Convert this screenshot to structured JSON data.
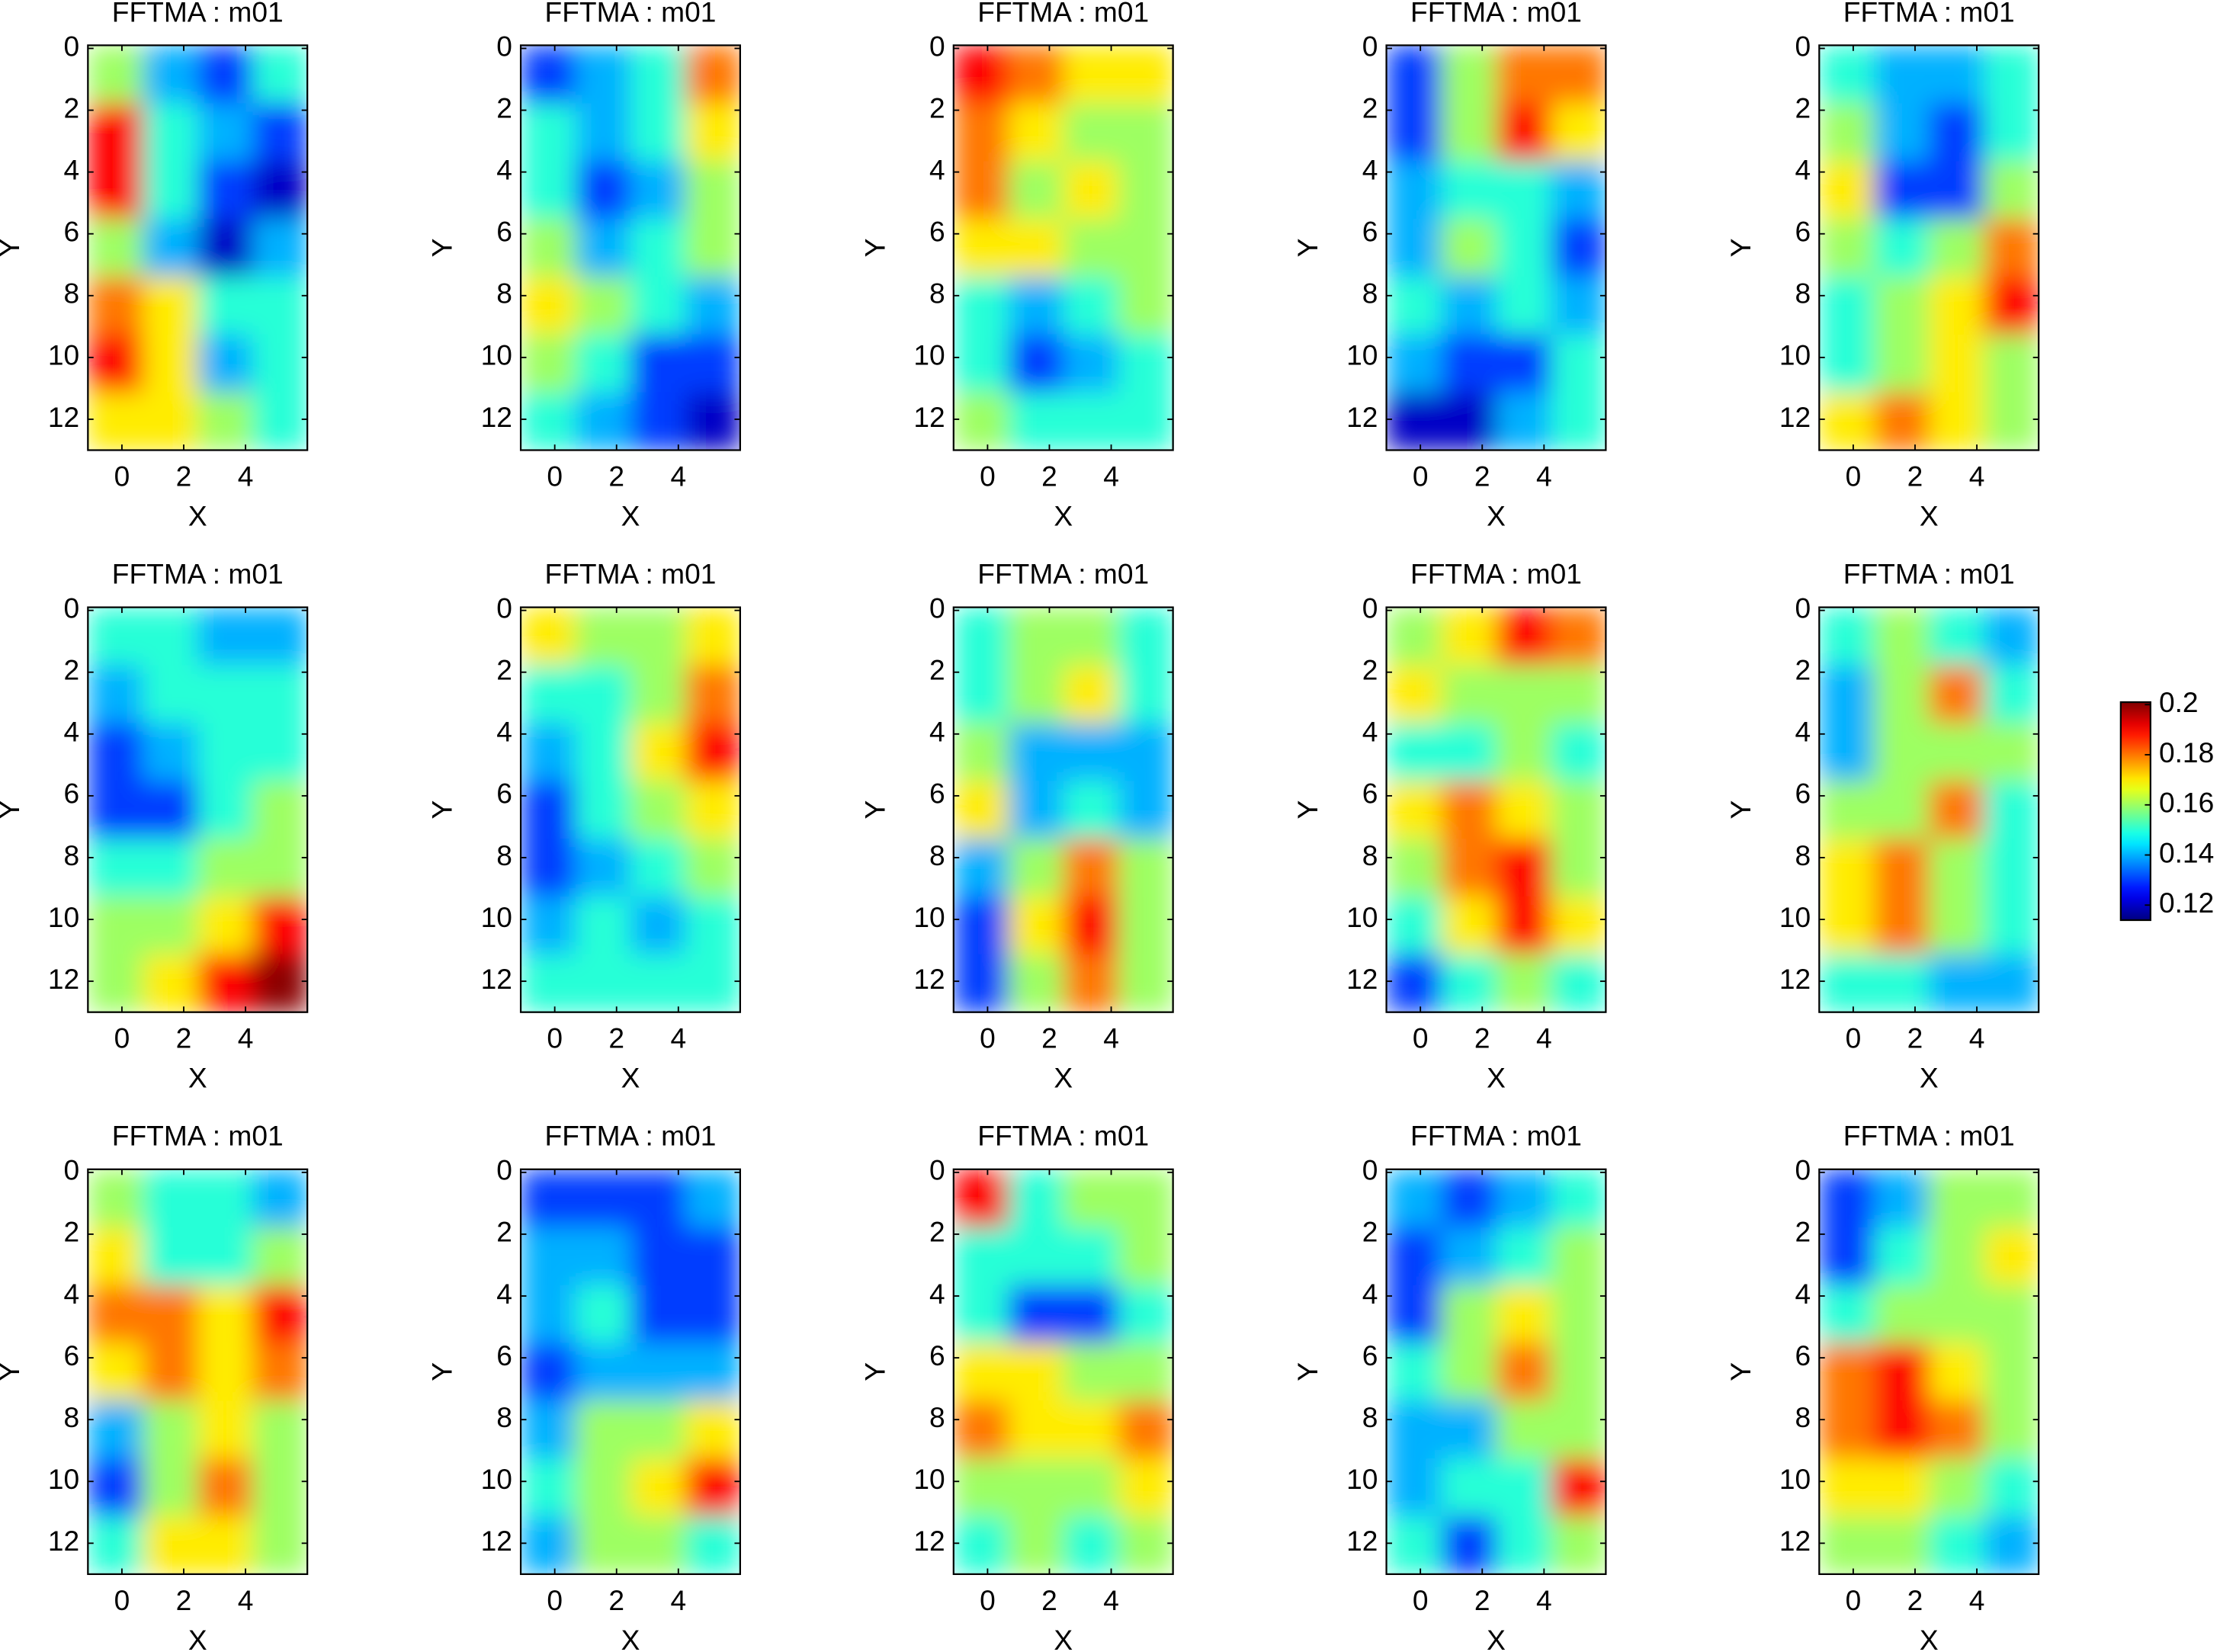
{
  "chart_data": [
    {
      "type": "heatmap",
      "title": "FFTMA : m01",
      "xlabel": "X",
      "ylabel": "Y",
      "x": [
        -0.21,
        1.56,
        3.34,
        5.11
      ],
      "y": [
        0.84,
        2.71,
        4.58,
        6.45,
        8.32,
        10.19,
        12.06
      ],
      "xlim": [
        -1.1,
        6
      ],
      "ylim": [
        -0.1,
        13
      ],
      "yreverse": true,
      "xticks": [
        0,
        2,
        4
      ],
      "yticks": [
        0,
        2,
        4,
        6,
        8,
        10,
        12
      ],
      "z": [
        [
          0.16,
          0.14,
          0.13,
          0.15
        ],
        [
          0.19,
          0.15,
          0.14,
          0.13
        ],
        [
          0.19,
          0.15,
          0.13,
          0.12
        ],
        [
          0.16,
          0.14,
          0.12,
          0.14
        ],
        [
          0.18,
          0.17,
          0.15,
          0.15
        ],
        [
          0.19,
          0.17,
          0.14,
          0.15
        ],
        [
          0.17,
          0.17,
          0.16,
          0.15
        ]
      ]
    },
    {
      "type": "heatmap",
      "title": "FFTMA : m01",
      "xlabel": "X",
      "ylabel": "Y",
      "x": [
        -0.21,
        1.56,
        3.34,
        5.11
      ],
      "y": [
        0.84,
        2.71,
        4.58,
        6.45,
        8.32,
        10.19,
        12.06
      ],
      "xlim": [
        -1.1,
        6
      ],
      "ylim": [
        -0.1,
        13
      ],
      "yreverse": true,
      "xticks": [
        0,
        2,
        4
      ],
      "yticks": [
        0,
        2,
        4,
        6,
        8,
        10,
        12
      ],
      "z": [
        [
          0.13,
          0.14,
          0.15,
          0.18
        ],
        [
          0.15,
          0.14,
          0.15,
          0.17
        ],
        [
          0.15,
          0.13,
          0.14,
          0.16
        ],
        [
          0.16,
          0.14,
          0.15,
          0.16
        ],
        [
          0.17,
          0.16,
          0.15,
          0.14
        ],
        [
          0.16,
          0.15,
          0.13,
          0.13
        ],
        [
          0.15,
          0.14,
          0.13,
          0.12
        ]
      ]
    },
    {
      "type": "heatmap",
      "title": "FFTMA : m01",
      "xlabel": "X",
      "ylabel": "Y",
      "x": [
        -0.21,
        1.56,
        3.34,
        5.11
      ],
      "y": [
        0.84,
        2.71,
        4.58,
        6.45,
        8.32,
        10.19,
        12.06
      ],
      "xlim": [
        -1.1,
        6
      ],
      "ylim": [
        -0.1,
        13
      ],
      "yreverse": true,
      "xticks": [
        0,
        2,
        4
      ],
      "yticks": [
        0,
        2,
        4,
        6,
        8,
        10,
        12
      ],
      "z": [
        [
          0.19,
          0.18,
          0.17,
          0.17
        ],
        [
          0.18,
          0.17,
          0.16,
          0.16
        ],
        [
          0.18,
          0.16,
          0.17,
          0.16
        ],
        [
          0.17,
          0.17,
          0.16,
          0.16
        ],
        [
          0.15,
          0.14,
          0.15,
          0.16
        ],
        [
          0.15,
          0.13,
          0.14,
          0.15
        ],
        [
          0.16,
          0.15,
          0.15,
          0.15
        ]
      ]
    },
    {
      "type": "heatmap",
      "title": "FFTMA : m01",
      "xlabel": "X",
      "ylabel": "Y",
      "x": [
        -0.21,
        1.56,
        3.34,
        5.11
      ],
      "y": [
        0.84,
        2.71,
        4.58,
        6.45,
        8.32,
        10.19,
        12.06
      ],
      "xlim": [
        -1.1,
        6
      ],
      "ylim": [
        -0.1,
        13
      ],
      "yreverse": true,
      "xticks": [
        0,
        2,
        4
      ],
      "yticks": [
        0,
        2,
        4,
        6,
        8,
        10,
        12
      ],
      "z": [
        [
          0.13,
          0.16,
          0.18,
          0.18
        ],
        [
          0.13,
          0.16,
          0.19,
          0.17
        ],
        [
          0.14,
          0.15,
          0.15,
          0.14
        ],
        [
          0.14,
          0.16,
          0.15,
          0.13
        ],
        [
          0.15,
          0.14,
          0.15,
          0.14
        ],
        [
          0.14,
          0.13,
          0.13,
          0.15
        ],
        [
          0.12,
          0.12,
          0.14,
          0.15
        ]
      ]
    },
    {
      "type": "heatmap",
      "title": "FFTMA : m01",
      "xlabel": "X",
      "ylabel": "Y",
      "x": [
        -0.21,
        1.56,
        3.34,
        5.11
      ],
      "y": [
        0.84,
        2.71,
        4.58,
        6.45,
        8.32,
        10.19,
        12.06
      ],
      "xlim": [
        -1.1,
        6
      ],
      "ylim": [
        -0.1,
        13
      ],
      "yreverse": true,
      "xticks": [
        0,
        2,
        4
      ],
      "yticks": [
        0,
        2,
        4,
        6,
        8,
        10,
        12
      ],
      "z": [
        [
          0.15,
          0.14,
          0.14,
          0.15
        ],
        [
          0.16,
          0.14,
          0.13,
          0.15
        ],
        [
          0.17,
          0.13,
          0.13,
          0.16
        ],
        [
          0.16,
          0.15,
          0.16,
          0.18
        ],
        [
          0.15,
          0.16,
          0.17,
          0.19
        ],
        [
          0.15,
          0.16,
          0.17,
          0.16
        ],
        [
          0.17,
          0.18,
          0.17,
          0.16
        ]
      ]
    },
    {
      "type": "heatmap",
      "title": "FFTMA : m01",
      "xlabel": "X",
      "ylabel": "Y",
      "x": [
        -0.21,
        1.56,
        3.34,
        5.11
      ],
      "y": [
        0.84,
        2.71,
        4.58,
        6.45,
        8.32,
        10.19,
        12.06
      ],
      "xlim": [
        -1.1,
        6
      ],
      "ylim": [
        -0.1,
        13
      ],
      "yreverse": true,
      "xticks": [
        0,
        2,
        4
      ],
      "yticks": [
        0,
        2,
        4,
        6,
        8,
        10,
        12
      ],
      "z": [
        [
          0.15,
          0.15,
          0.14,
          0.14
        ],
        [
          0.14,
          0.15,
          0.15,
          0.15
        ],
        [
          0.13,
          0.14,
          0.15,
          0.15
        ],
        [
          0.13,
          0.13,
          0.15,
          0.16
        ],
        [
          0.15,
          0.15,
          0.16,
          0.16
        ],
        [
          0.16,
          0.16,
          0.17,
          0.19
        ],
        [
          0.16,
          0.17,
          0.19,
          0.2
        ]
      ]
    },
    {
      "type": "heatmap",
      "title": "FFTMA : m01",
      "xlabel": "X",
      "ylabel": "Y",
      "x": [
        -0.21,
        1.56,
        3.34,
        5.11
      ],
      "y": [
        0.84,
        2.71,
        4.58,
        6.45,
        8.32,
        10.19,
        12.06
      ],
      "xlim": [
        -1.1,
        6
      ],
      "ylim": [
        -0.1,
        13
      ],
      "yreverse": true,
      "xticks": [
        0,
        2,
        4
      ],
      "yticks": [
        0,
        2,
        4,
        6,
        8,
        10,
        12
      ],
      "z": [
        [
          0.17,
          0.16,
          0.16,
          0.17
        ],
        [
          0.15,
          0.15,
          0.16,
          0.18
        ],
        [
          0.14,
          0.15,
          0.17,
          0.19
        ],
        [
          0.13,
          0.15,
          0.16,
          0.17
        ],
        [
          0.13,
          0.14,
          0.15,
          0.16
        ],
        [
          0.14,
          0.15,
          0.14,
          0.15
        ],
        [
          0.15,
          0.15,
          0.15,
          0.15
        ]
      ]
    },
    {
      "type": "heatmap",
      "title": "FFTMA : m01",
      "xlabel": "X",
      "ylabel": "Y",
      "x": [
        -0.21,
        1.56,
        3.34,
        5.11
      ],
      "y": [
        0.84,
        2.71,
        4.58,
        6.45,
        8.32,
        10.19,
        12.06
      ],
      "xlim": [
        -1.1,
        6
      ],
      "ylim": [
        -0.1,
        13
      ],
      "yreverse": true,
      "xticks": [
        0,
        2,
        4
      ],
      "yticks": [
        0,
        2,
        4,
        6,
        8,
        10,
        12
      ],
      "z": [
        [
          0.15,
          0.16,
          0.16,
          0.15
        ],
        [
          0.15,
          0.16,
          0.17,
          0.15
        ],
        [
          0.16,
          0.14,
          0.14,
          0.14
        ],
        [
          0.17,
          0.14,
          0.15,
          0.14
        ],
        [
          0.14,
          0.16,
          0.18,
          0.16
        ],
        [
          0.13,
          0.17,
          0.19,
          0.16
        ],
        [
          0.13,
          0.16,
          0.18,
          0.16
        ]
      ]
    },
    {
      "type": "heatmap",
      "title": "FFTMA : m01",
      "xlabel": "X",
      "ylabel": "Y",
      "x": [
        -0.21,
        1.56,
        3.34,
        5.11
      ],
      "y": [
        0.84,
        2.71,
        4.58,
        6.45,
        8.32,
        10.19,
        12.06
      ],
      "xlim": [
        -1.1,
        6
      ],
      "ylim": [
        -0.1,
        13
      ],
      "yreverse": true,
      "xticks": [
        0,
        2,
        4
      ],
      "yticks": [
        0,
        2,
        4,
        6,
        8,
        10,
        12
      ],
      "z": [
        [
          0.16,
          0.17,
          0.19,
          0.18
        ],
        [
          0.17,
          0.16,
          0.16,
          0.16
        ],
        [
          0.15,
          0.15,
          0.16,
          0.15
        ],
        [
          0.17,
          0.18,
          0.17,
          0.16
        ],
        [
          0.16,
          0.18,
          0.19,
          0.16
        ],
        [
          0.15,
          0.17,
          0.19,
          0.17
        ],
        [
          0.13,
          0.15,
          0.16,
          0.15
        ]
      ]
    },
    {
      "type": "heatmap",
      "title": "FFTMA : m01",
      "xlabel": "X",
      "ylabel": "Y",
      "x": [
        -0.21,
        1.56,
        3.34,
        5.11
      ],
      "y": [
        0.84,
        2.71,
        4.58,
        6.45,
        8.32,
        10.19,
        12.06
      ],
      "xlim": [
        -1.1,
        6
      ],
      "ylim": [
        -0.1,
        13
      ],
      "yreverse": true,
      "xticks": [
        0,
        2,
        4
      ],
      "yticks": [
        0,
        2,
        4,
        6,
        8,
        10,
        12
      ],
      "z": [
        [
          0.15,
          0.16,
          0.15,
          0.14
        ],
        [
          0.14,
          0.16,
          0.18,
          0.15
        ],
        [
          0.14,
          0.16,
          0.16,
          0.16
        ],
        [
          0.16,
          0.16,
          0.18,
          0.15
        ],
        [
          0.17,
          0.18,
          0.16,
          0.15
        ],
        [
          0.17,
          0.18,
          0.16,
          0.15
        ],
        [
          0.15,
          0.15,
          0.14,
          0.14
        ]
      ]
    },
    {
      "type": "heatmap",
      "title": "FFTMA : m01",
      "xlabel": "X",
      "ylabel": "Y",
      "x": [
        -0.21,
        1.56,
        3.34,
        5.11
      ],
      "y": [
        0.84,
        2.71,
        4.58,
        6.45,
        8.32,
        10.19,
        12.06
      ],
      "xlim": [
        -1.1,
        6
      ],
      "ylim": [
        -0.1,
        13
      ],
      "yreverse": true,
      "xticks": [
        0,
        2,
        4
      ],
      "yticks": [
        0,
        2,
        4,
        6,
        8,
        10,
        12
      ],
      "z": [
        [
          0.16,
          0.15,
          0.15,
          0.14
        ],
        [
          0.17,
          0.15,
          0.15,
          0.16
        ],
        [
          0.18,
          0.18,
          0.17,
          0.19
        ],
        [
          0.17,
          0.18,
          0.17,
          0.18
        ],
        [
          0.14,
          0.16,
          0.17,
          0.16
        ],
        [
          0.13,
          0.16,
          0.18,
          0.16
        ],
        [
          0.15,
          0.17,
          0.17,
          0.16
        ]
      ]
    },
    {
      "type": "heatmap",
      "title": "FFTMA : m01",
      "xlabel": "X",
      "ylabel": "Y",
      "x": [
        -0.21,
        1.56,
        3.34,
        5.11
      ],
      "y": [
        0.84,
        2.71,
        4.58,
        6.45,
        8.32,
        10.19,
        12.06
      ],
      "xlim": [
        -1.1,
        6
      ],
      "ylim": [
        -0.1,
        13
      ],
      "yreverse": true,
      "xticks": [
        0,
        2,
        4
      ],
      "yticks": [
        0,
        2,
        4,
        6,
        8,
        10,
        12
      ],
      "z": [
        [
          0.13,
          0.13,
          0.13,
          0.14
        ],
        [
          0.14,
          0.14,
          0.13,
          0.13
        ],
        [
          0.14,
          0.15,
          0.13,
          0.13
        ],
        [
          0.13,
          0.14,
          0.14,
          0.14
        ],
        [
          0.14,
          0.16,
          0.16,
          0.17
        ],
        [
          0.15,
          0.16,
          0.17,
          0.19
        ],
        [
          0.14,
          0.16,
          0.16,
          0.15
        ]
      ]
    },
    {
      "type": "heatmap",
      "title": "FFTMA : m01",
      "xlabel": "X",
      "ylabel": "Y",
      "x": [
        -0.21,
        1.56,
        3.34,
        5.11
      ],
      "y": [
        0.84,
        2.71,
        4.58,
        6.45,
        8.32,
        10.19,
        12.06
      ],
      "xlim": [
        -1.1,
        6
      ],
      "ylim": [
        -0.1,
        13
      ],
      "yreverse": true,
      "xticks": [
        0,
        2,
        4
      ],
      "yticks": [
        0,
        2,
        4,
        6,
        8,
        10,
        12
      ],
      "z": [
        [
          0.19,
          0.15,
          0.16,
          0.16
        ],
        [
          0.15,
          0.15,
          0.15,
          0.16
        ],
        [
          0.15,
          0.13,
          0.13,
          0.15
        ],
        [
          0.17,
          0.17,
          0.16,
          0.16
        ],
        [
          0.18,
          0.17,
          0.17,
          0.18
        ],
        [
          0.16,
          0.16,
          0.16,
          0.17
        ],
        [
          0.15,
          0.16,
          0.15,
          0.16
        ]
      ]
    },
    {
      "type": "heatmap",
      "title": "FFTMA : m01",
      "xlabel": "X",
      "ylabel": "Y",
      "x": [
        -0.21,
        1.56,
        3.34,
        5.11
      ],
      "y": [
        0.84,
        2.71,
        4.58,
        6.45,
        8.32,
        10.19,
        12.06
      ],
      "xlim": [
        -1.1,
        6
      ],
      "ylim": [
        -0.1,
        13
      ],
      "yreverse": true,
      "xticks": [
        0,
        2,
        4
      ],
      "yticks": [
        0,
        2,
        4,
        6,
        8,
        10,
        12
      ],
      "z": [
        [
          0.14,
          0.13,
          0.14,
          0.15
        ],
        [
          0.13,
          0.14,
          0.15,
          0.16
        ],
        [
          0.13,
          0.16,
          0.17,
          0.16
        ],
        [
          0.15,
          0.16,
          0.18,
          0.16
        ],
        [
          0.14,
          0.14,
          0.16,
          0.16
        ],
        [
          0.14,
          0.15,
          0.15,
          0.19
        ],
        [
          0.15,
          0.13,
          0.15,
          0.16
        ]
      ]
    },
    {
      "type": "heatmap",
      "title": "FFTMA : m01",
      "xlabel": "X",
      "ylabel": "Y",
      "x": [
        -0.21,
        1.56,
        3.34,
        5.11
      ],
      "y": [
        0.84,
        2.71,
        4.58,
        6.45,
        8.32,
        10.19,
        12.06
      ],
      "xlim": [
        -1.1,
        6
      ],
      "ylim": [
        -0.1,
        13
      ],
      "yreverse": true,
      "xticks": [
        0,
        2,
        4
      ],
      "yticks": [
        0,
        2,
        4,
        6,
        8,
        10,
        12
      ],
      "z": [
        [
          0.13,
          0.14,
          0.16,
          0.16
        ],
        [
          0.13,
          0.15,
          0.16,
          0.17
        ],
        [
          0.15,
          0.16,
          0.16,
          0.16
        ],
        [
          0.18,
          0.19,
          0.17,
          0.16
        ],
        [
          0.18,
          0.19,
          0.18,
          0.16
        ],
        [
          0.17,
          0.17,
          0.16,
          0.15
        ],
        [
          0.16,
          0.16,
          0.15,
          0.14
        ]
      ]
    }
  ],
  "colorbar": {
    "colormap": "jet",
    "clim": [
      0.114,
      0.201
    ],
    "ticks": [
      0.12,
      0.14,
      0.16,
      0.18,
      0.2
    ]
  }
}
